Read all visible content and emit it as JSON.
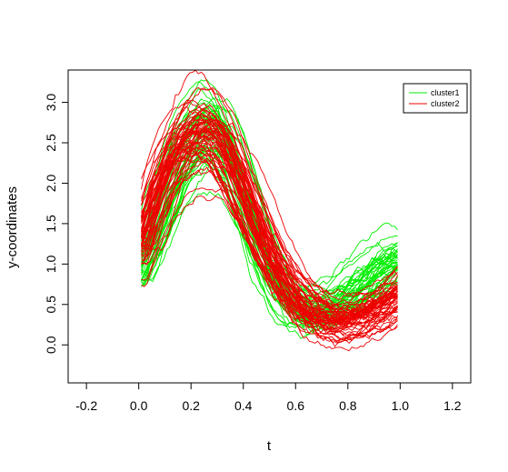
{
  "chart_data": {
    "type": "line",
    "title": "",
    "xlabel": "t",
    "ylabel": "y-coordinates",
    "xlim": [
      -0.27,
      1.27
    ],
    "ylim": [
      -0.47,
      3.4
    ],
    "xticks": [
      -0.2,
      0.0,
      0.2,
      0.4,
      0.6,
      0.8,
      1.0,
      1.2
    ],
    "xtick_labels": [
      "-0.2",
      "0.0",
      "0.2",
      "0.4",
      "0.6",
      "0.8",
      "1.0",
      "1.2"
    ],
    "yticks": [
      0.0,
      0.5,
      1.0,
      1.5,
      2.0,
      2.5,
      3.0
    ],
    "ytick_labels": [
      "0.0",
      "0.5",
      "1.0",
      "1.5",
      "2.0",
      "2.5",
      "3.0"
    ],
    "grid": false,
    "legend_position": "top-right",
    "x": [
      0.01,
      0.06,
      0.11,
      0.16,
      0.21,
      0.26,
      0.31,
      0.36,
      0.41,
      0.46,
      0.51,
      0.56,
      0.61,
      0.66,
      0.71,
      0.76,
      0.81,
      0.86,
      0.91,
      0.96,
      0.99
    ],
    "series": [
      {
        "name": "cluster1",
        "color": "#00ee00",
        "curve_count": 45,
        "values": [
          0.95,
          1.35,
          1.8,
          2.25,
          2.55,
          2.75,
          2.7,
          2.4,
          1.9,
          1.35,
          0.95,
          0.65,
          0.48,
          0.42,
          0.45,
          0.52,
          0.62,
          0.75,
          0.88,
          1.0,
          1.05
        ]
      },
      {
        "name": "cluster2",
        "color": "#ee0000",
        "curve_count": 60,
        "values": [
          1.2,
          1.75,
          2.15,
          2.45,
          2.6,
          2.62,
          2.5,
          2.2,
          1.8,
          1.4,
          1.05,
          0.75,
          0.55,
          0.4,
          0.33,
          0.28,
          0.3,
          0.35,
          0.42,
          0.52,
          0.6
        ]
      }
    ]
  }
}
